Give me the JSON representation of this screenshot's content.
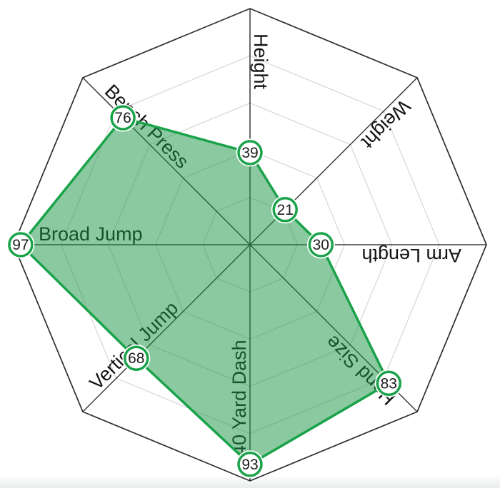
{
  "chart_data": {
    "type": "radar",
    "title": "",
    "legend": "none",
    "categories": [
      "Height",
      "Weight",
      "Arm Length",
      "Hand Size",
      "40 Yard Dash",
      "Vertical Jump",
      "Broad Jump",
      "Bench Press"
    ],
    "values": [
      39,
      21,
      30,
      83,
      93,
      68,
      97,
      76
    ],
    "axis_range": {
      "min": 0,
      "max": 100
    },
    "grid": {
      "rings": 5,
      "shape": "octagon",
      "visible": true
    },
    "start_axis": "top",
    "direction": "clockwise",
    "colors": {
      "polygon_fill": "rgba(24,150,68,0.5)",
      "polygon_stroke": "#1aa34a",
      "marker_ring": "#1aa34a",
      "marker_fill": "#ffffff",
      "marker_text": "#1d1d1d",
      "axis_line": "#3a3a3a",
      "outer_ring": "#2e2e2e",
      "grid_line": "#d7d7d7",
      "label_text": "#151515",
      "background": "#ffffff"
    }
  }
}
